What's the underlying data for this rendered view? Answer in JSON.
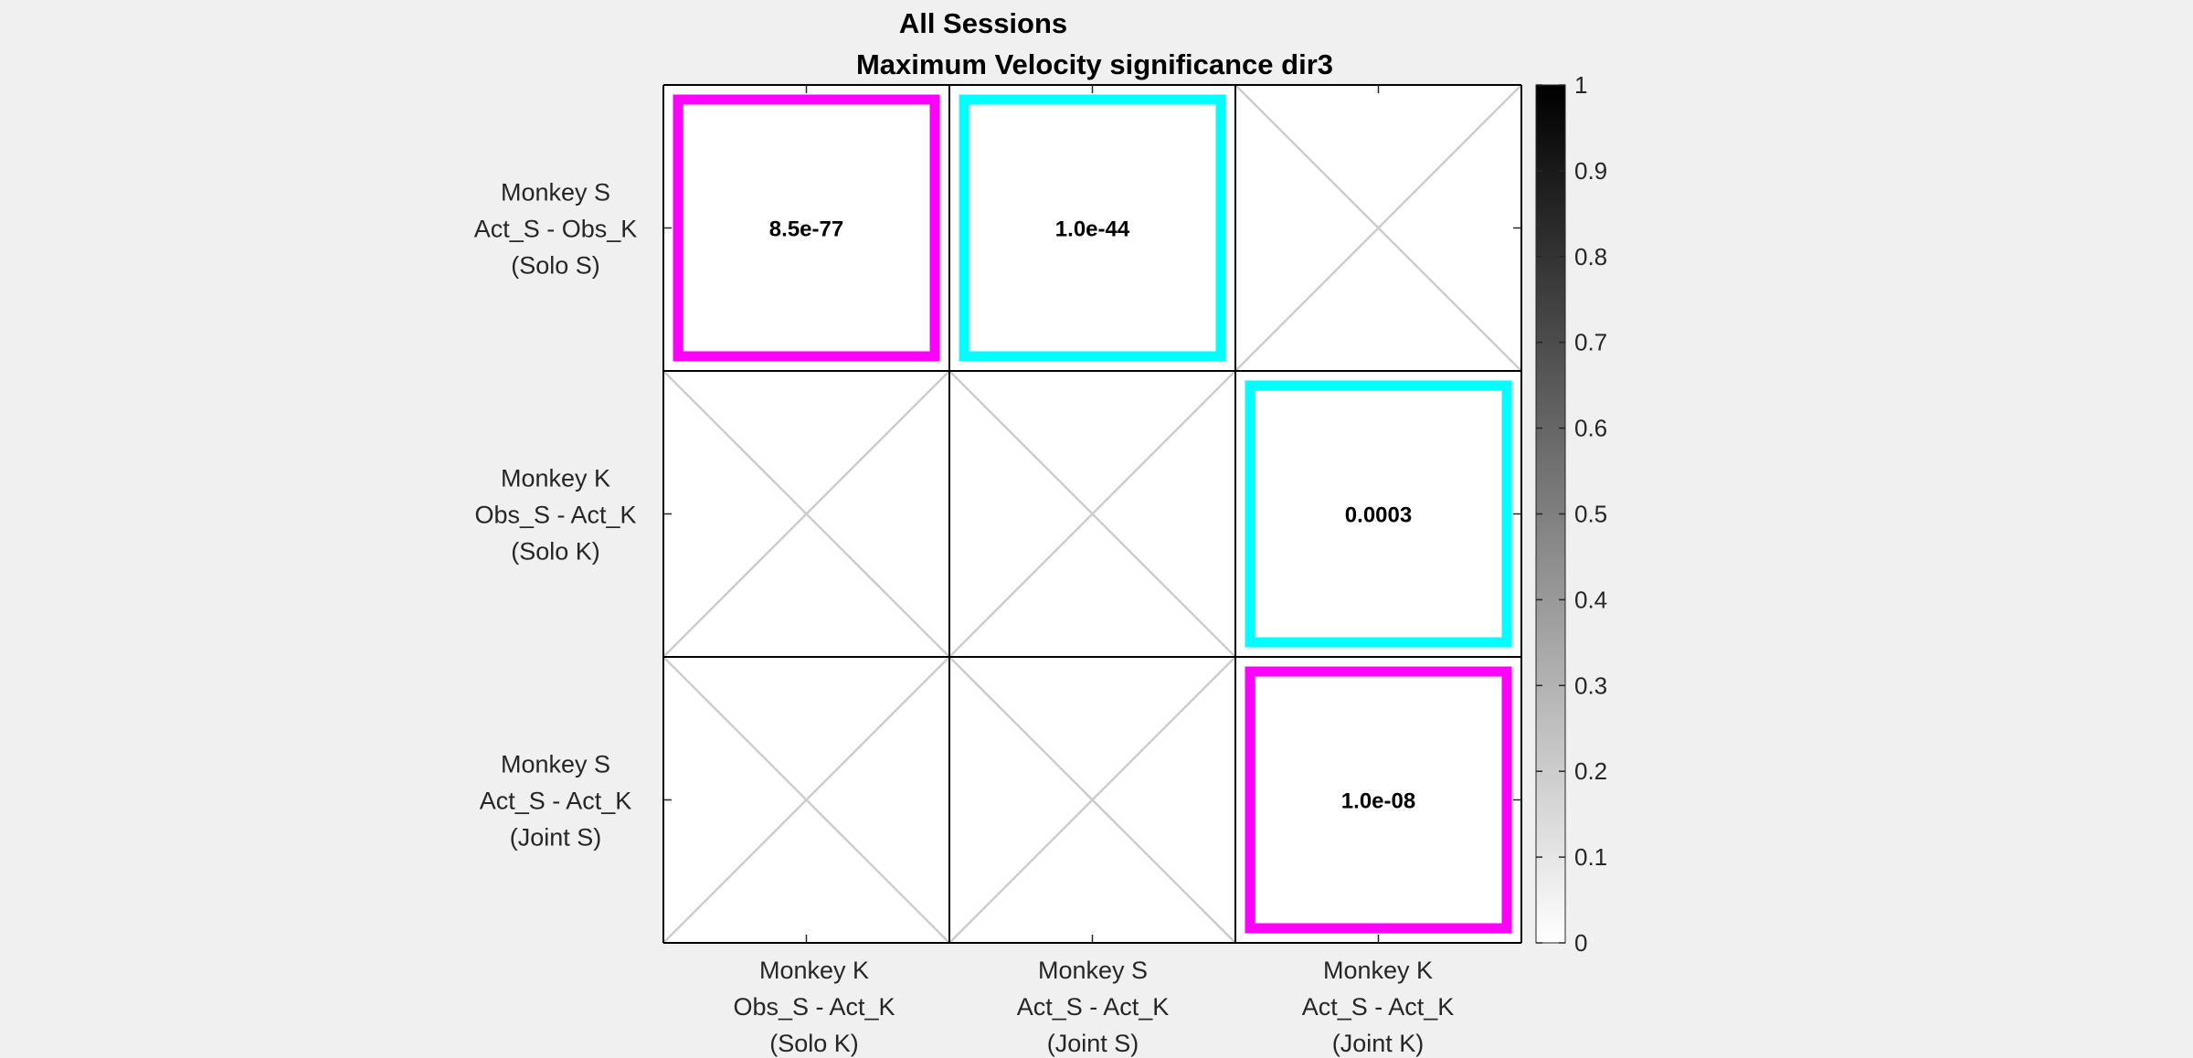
{
  "chart_data": {
    "type": "heatmap",
    "title": "All Sessions",
    "subtitle": "Maximum Velocity significance dir3",
    "row_labels": [
      [
        "Monkey S",
        "Act_S - Obs_K",
        "(Solo S)"
      ],
      [
        "Monkey K",
        "Obs_S - Act_K",
        "(Solo K)"
      ],
      [
        "Monkey S",
        "Act_S - Act_K",
        "(Joint S)"
      ]
    ],
    "col_labels": [
      [
        "Monkey K",
        "Obs_S - Act_K",
        "(Solo K)"
      ],
      [
        "Monkey S",
        "Act_S - Act_K",
        "(Joint S)"
      ],
      [
        "Monkey K",
        "Act_S - Act_K",
        "(Joint K)"
      ]
    ],
    "cells": [
      [
        {
          "value": 0,
          "label": "8.5e-77",
          "highlight": "#ff00ff"
        },
        {
          "value": 0,
          "label": "1.0e-44",
          "highlight": "#00ffff"
        },
        null
      ],
      [
        null,
        null,
        {
          "value": 0.0003,
          "label": "0.0003",
          "highlight": "#00ffff"
        }
      ],
      [
        null,
        null,
        {
          "value": 0,
          "label": "1.0e-08",
          "highlight": "#ff00ff"
        }
      ]
    ],
    "empty_cell_marker": "cross",
    "colorbar": {
      "range": [
        0,
        1
      ],
      "ticks": [
        "0",
        "0.1",
        "0.2",
        "0.3",
        "0.4",
        "0.5",
        "0.6",
        "0.7",
        "0.8",
        "0.9",
        "1"
      ],
      "colormap": "gray-reversed"
    },
    "colors": {
      "background": "#f0f0f0",
      "cell_fill": "#ffffff",
      "cross": "#cccccc",
      "grid": "#000000",
      "axis_text": "#262626"
    }
  }
}
